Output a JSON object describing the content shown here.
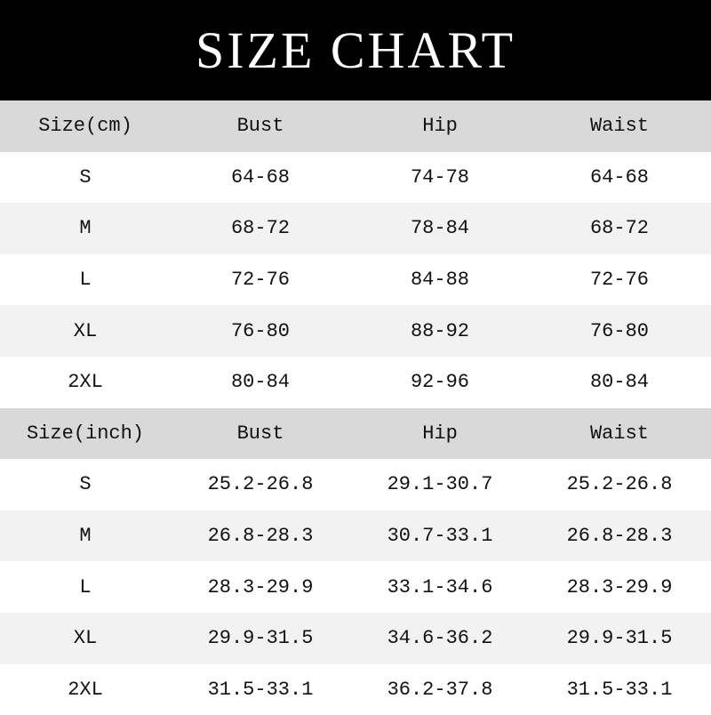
{
  "title": "SIZE CHART",
  "tables": [
    {
      "headers": [
        "Size(cm)",
        "Bust",
        "Hip",
        "Waist"
      ],
      "rows": [
        [
          "S",
          "64-68",
          "74-78",
          "64-68"
        ],
        [
          "M",
          "68-72",
          "78-84",
          "68-72"
        ],
        [
          "L",
          "72-76",
          "84-88",
          "72-76"
        ],
        [
          "XL",
          "76-80",
          "88-92",
          "76-80"
        ],
        [
          "2XL",
          "80-84",
          "92-96",
          "80-84"
        ]
      ]
    },
    {
      "headers": [
        "Size(inch)",
        "Bust",
        "Hip",
        "Waist"
      ],
      "rows": [
        [
          "S",
          "25.2-26.8",
          "29.1-30.7",
          "25.2-26.8"
        ],
        [
          "M",
          "26.8-28.3",
          "30.7-33.1",
          "26.8-28.3"
        ],
        [
          "L",
          "28.3-29.9",
          "33.1-34.6",
          "28.3-29.9"
        ],
        [
          "XL",
          "29.9-31.5",
          "34.6-36.2",
          "29.9-31.5"
        ],
        [
          "2XL",
          "31.5-33.1",
          "36.2-37.8",
          "31.5-33.1"
        ]
      ]
    }
  ],
  "colors": {
    "header_bg": "#000000",
    "table_head_bg": "#d9d9d9",
    "alt_row_bg": "#f2f2f2"
  }
}
